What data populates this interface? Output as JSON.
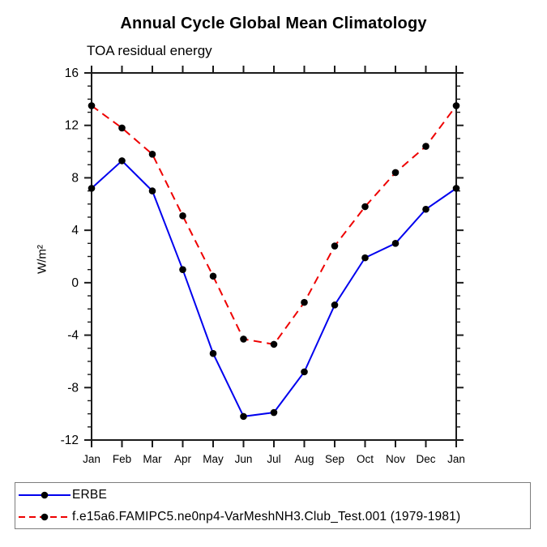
{
  "chart_data": {
    "type": "line",
    "title": "Annual Cycle Global Mean Climatology",
    "subtitle": "TOA residual energy",
    "ylabel": "W/m²",
    "xlabel": "",
    "categories": [
      "Jan",
      "Feb",
      "Mar",
      "Apr",
      "May",
      "Jun",
      "Jul",
      "Aug",
      "Sep",
      "Oct",
      "Nov",
      "Dec",
      "Jan"
    ],
    "series": [
      {
        "name": "ERBE",
        "color": "#0000ee",
        "line_style": "solid",
        "marker": "filled-circle",
        "marker_color": "#000000",
        "values": [
          7.2,
          9.3,
          7.0,
          1.0,
          -5.4,
          -10.2,
          -9.9,
          -6.8,
          -1.7,
          1.9,
          3.0,
          5.6,
          7.2
        ]
      },
      {
        "name": "f.e15a6.FAMIPC5.ne0np4-VarMeshNH3.Club_Test.001 (1979-1981)",
        "color": "#ee0000",
        "line_style": "dashed",
        "marker": "filled-circle",
        "marker_color": "#000000",
        "values": [
          13.5,
          11.8,
          9.8,
          5.1,
          0.5,
          -4.3,
          -4.7,
          -1.5,
          2.8,
          5.8,
          8.4,
          10.4,
          13.5
        ]
      }
    ],
    "ylim": [
      -12,
      16
    ],
    "ytick_major_step": 4,
    "ytick_minor_step": 1,
    "yticks_major": [
      -12,
      -8,
      -4,
      0,
      4,
      8,
      12,
      16
    ],
    "grid": false,
    "legend_position": "bottom-left-box",
    "axis_color": "#1a1a1a"
  }
}
